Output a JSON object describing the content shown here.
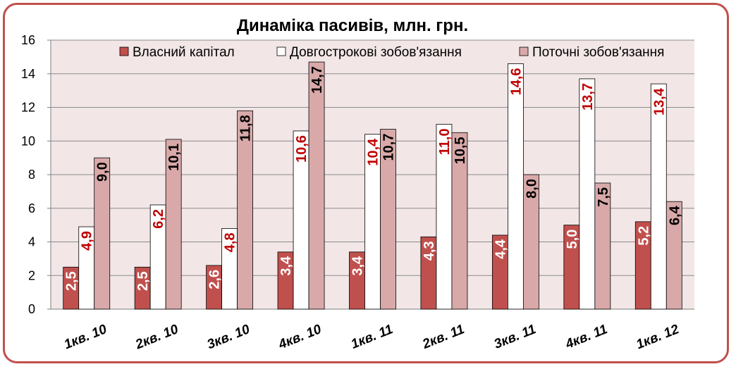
{
  "chart_data": {
    "type": "bar",
    "title": "Динаміка пасивів,  млн. грн.",
    "xlabel": "",
    "ylabel": "",
    "ylim": [
      0,
      16
    ],
    "yticks": [
      0,
      2,
      4,
      6,
      8,
      10,
      12,
      14,
      16
    ],
    "grid": true,
    "legend_position": "top",
    "categories": [
      "1кв. 10",
      "2кв. 10",
      "3кв. 10",
      "4кв. 10",
      "1кв. 11",
      "2кв. 11",
      "3кв. 11",
      "4кв. 11",
      "1кв. 12"
    ],
    "series": [
      {
        "name": "Власний капітал",
        "values": [
          2.5,
          2.5,
          2.6,
          3.4,
          3.4,
          4.3,
          4.4,
          5.0,
          5.2
        ],
        "labels": [
          "2,5",
          "2,5",
          "2,6",
          "3,4",
          "3,4",
          "4,3",
          "4,4",
          "5,0",
          "5,2"
        ],
        "color": "#c0504d",
        "label_color": "#ffffff"
      },
      {
        "name": "Довгострокові зобов'язання",
        "values": [
          4.9,
          6.2,
          4.8,
          10.6,
          10.4,
          11.0,
          14.6,
          13.7,
          13.4
        ],
        "labels": [
          "4,9",
          "6,2",
          "4,8",
          "10,6",
          "10,4",
          "11,0",
          "14,6",
          "13,7",
          "13,4"
        ],
        "color": "#ffffff",
        "label_color": "#c00000"
      },
      {
        "name": "Поточні зобов'язання",
        "values": [
          9.0,
          10.1,
          11.8,
          14.7,
          10.7,
          10.5,
          8.0,
          7.5,
          6.4
        ],
        "labels": [
          "9,0",
          "10,1",
          "11,8",
          "14,7",
          "10,7",
          "10,5",
          "8,0",
          "7,5",
          "6,4"
        ],
        "color": "#d9a9a9",
        "label_color": "#000000"
      }
    ],
    "plot_background": "#f2e6e6",
    "frame_color": "#c0504d"
  }
}
